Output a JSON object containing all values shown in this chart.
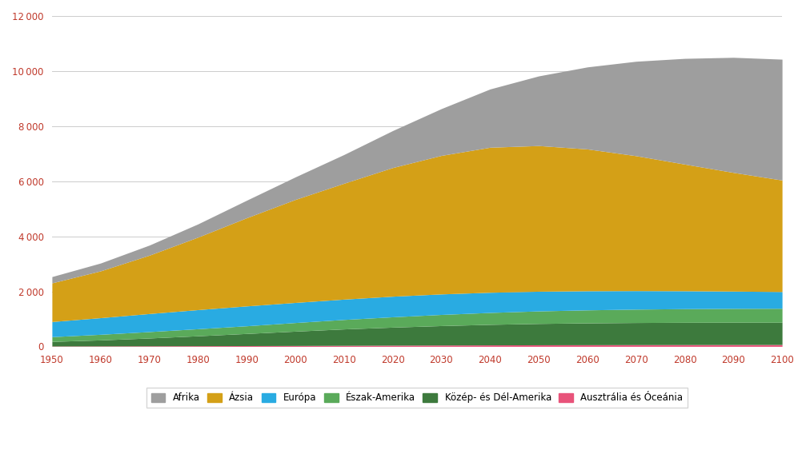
{
  "years": [
    1950,
    1960,
    1970,
    1980,
    1990,
    2000,
    2010,
    2020,
    2030,
    2040,
    2050,
    2060,
    2070,
    2080,
    2090,
    2100
  ],
  "regions": [
    "Ausztrália és Óceánia",
    "Közép- és Dél-Amerika",
    "Észak-Amerika",
    "Európa",
    "Ázsia",
    "Afrika"
  ],
  "colors": [
    "#e8537a",
    "#3d7a3d",
    "#5aaa5a",
    "#29abe2",
    "#d4a017",
    "#9e9e9e"
  ],
  "data": {
    "Ausztrália és Óceánia": [
      13,
      16,
      19,
      23,
      27,
      31,
      37,
      43,
      48,
      53,
      57,
      60,
      63,
      65,
      67,
      68
    ],
    "Közép- és Dél-Amerika": [
      167,
      218,
      285,
      361,
      441,
      521,
      596,
      655,
      706,
      746,
      775,
      793,
      803,
      808,
      809,
      807
    ],
    "Észak-Amerika": [
      172,
      204,
      232,
      256,
      279,
      313,
      344,
      375,
      405,
      432,
      455,
      472,
      486,
      496,
      503,
      508
    ],
    "Európa": [
      549,
      604,
      656,
      694,
      722,
      730,
      738,
      748,
      745,
      733,
      715,
      694,
      672,
      650,
      628,
      607
    ],
    "Ázsia": [
      1404,
      1701,
      2120,
      2634,
      3202,
      3741,
      4209,
      4673,
      5031,
      5267,
      5290,
      5150,
      4900,
      4600,
      4310,
      4050
    ],
    "Afrika": [
      229,
      285,
      366,
      480,
      637,
      819,
      1044,
      1343,
      1700,
      2117,
      2530,
      2980,
      3430,
      3840,
      4180,
      4390
    ]
  },
  "ylim": [
    0,
    12000
  ],
  "yticks": [
    0,
    2000,
    4000,
    6000,
    8000,
    10000,
    12000
  ],
  "ylabel": "",
  "xlabel": "",
  "background_color": "#ffffff",
  "legend_labels": [
    "Afrika",
    "Ázsia",
    "Európa",
    "Észak-Amerika",
    "Közép- és Dél-Amerika",
    "Ausztrália és Óceánia"
  ],
  "legend_colors": [
    "#9e9e9e",
    "#d4a017",
    "#29abe2",
    "#5aaa5a",
    "#3d7a3d",
    "#e8537a"
  ],
  "title": ""
}
